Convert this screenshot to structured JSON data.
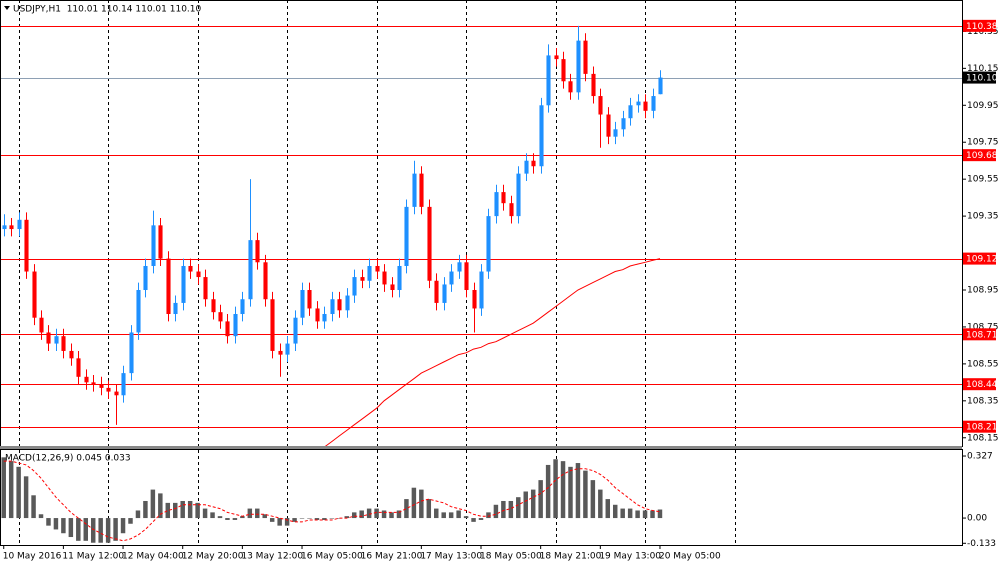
{
  "chart_data": {
    "type": "candlestick",
    "title": "USDJPY,H1  110.01 110.14 110.01 110.10",
    "bull_color": "#1e90ff",
    "bear_color": "#ff0000",
    "open": [
      109.28,
      109.3,
      109.28,
      109.33,
      109.05,
      108.8,
      108.72,
      108.66,
      108.7,
      108.62,
      108.58,
      108.48,
      108.45,
      108.44,
      108.42,
      108.4,
      108.38,
      108.5,
      108.72,
      108.95,
      109.08,
      109.3,
      109.12,
      108.82,
      108.88,
      109.08,
      109.05,
      109.02,
      108.9,
      108.83,
      108.78,
      108.7,
      108.82,
      108.9,
      109.22,
      109.1,
      108.9,
      108.62,
      108.6,
      108.66,
      108.8,
      108.95,
      108.85,
      108.78,
      108.82,
      108.9,
      108.84,
      108.92,
      109.02,
      109.0,
      109.08,
      109.05,
      108.98,
      108.95,
      109.08,
      109.4,
      109.58,
      109.4,
      109.0,
      108.88,
      108.98,
      109.05,
      109.1,
      108.95,
      108.85,
      109.05,
      109.35,
      109.48,
      109.42,
      109.35,
      109.58,
      109.65,
      109.62,
      109.95,
      110.22,
      110.2,
      110.08,
      110.02,
      110.3,
      110.12,
      110.0,
      109.9,
      109.78,
      109.82,
      109.88,
      109.95,
      109.97,
      109.92,
      110.01
    ],
    "high": [
      109.36,
      109.34,
      109.37,
      109.37,
      109.09,
      108.84,
      108.76,
      108.74,
      108.74,
      108.66,
      108.62,
      108.52,
      108.49,
      108.48,
      108.46,
      108.44,
      108.54,
      108.76,
      108.99,
      109.12,
      109.38,
      109.34,
      109.16,
      108.92,
      109.12,
      109.12,
      109.09,
      109.06,
      108.94,
      108.87,
      108.82,
      108.86,
      108.94,
      109.55,
      109.26,
      109.14,
      108.94,
      108.66,
      108.7,
      108.84,
      108.99,
      108.99,
      108.89,
      108.86,
      108.94,
      108.94,
      108.96,
      109.06,
      109.06,
      109.12,
      109.12,
      109.09,
      109.02,
      109.12,
      109.44,
      109.65,
      109.62,
      109.44,
      109.04,
      109.02,
      109.09,
      109.14,
      109.14,
      108.99,
      109.09,
      109.39,
      109.52,
      109.52,
      109.46,
      109.62,
      109.69,
      109.69,
      109.99,
      110.28,
      110.26,
      110.24,
      110.12,
      110.38,
      110.34,
      110.16,
      110.04,
      109.94,
      109.86,
      109.92,
      109.99,
      110.01,
      110.01,
      110.04,
      110.14
    ],
    "low": [
      109.24,
      109.24,
      109.24,
      109.01,
      108.76,
      108.68,
      108.62,
      108.62,
      108.58,
      108.54,
      108.44,
      108.41,
      108.4,
      108.38,
      108.36,
      108.22,
      108.34,
      108.46,
      108.68,
      108.91,
      109.04,
      109.08,
      108.78,
      108.78,
      108.84,
      109.01,
      108.98,
      108.86,
      108.79,
      108.74,
      108.66,
      108.66,
      108.78,
      108.86,
      109.06,
      108.86,
      108.58,
      108.48,
      108.56,
      108.62,
      108.76,
      108.81,
      108.74,
      108.74,
      108.78,
      108.8,
      108.8,
      108.88,
      108.96,
      108.96,
      109.01,
      108.94,
      108.91,
      108.91,
      109.04,
      109.36,
      109.36,
      108.96,
      108.84,
      108.84,
      108.94,
      109.01,
      108.91,
      108.72,
      108.81,
      109.01,
      109.31,
      109.38,
      109.31,
      109.31,
      109.54,
      109.58,
      109.58,
      109.91,
      110.16,
      110.04,
      109.98,
      109.98,
      110.08,
      109.96,
      109.72,
      109.74,
      109.74,
      109.78,
      109.84,
      109.91,
      109.88,
      109.88,
      110.01
    ],
    "close": [
      109.3,
      109.28,
      109.33,
      109.05,
      108.8,
      108.72,
      108.66,
      108.7,
      108.62,
      108.58,
      108.48,
      108.45,
      108.44,
      108.42,
      108.4,
      108.38,
      108.5,
      108.72,
      108.95,
      109.08,
      109.3,
      109.12,
      108.82,
      108.88,
      109.08,
      109.05,
      109.02,
      108.9,
      108.83,
      108.78,
      108.7,
      108.82,
      108.9,
      109.22,
      109.1,
      108.9,
      108.62,
      108.6,
      108.66,
      108.8,
      108.95,
      108.85,
      108.78,
      108.82,
      108.9,
      108.84,
      108.92,
      109.02,
      109.0,
      109.08,
      109.05,
      108.98,
      108.95,
      109.08,
      109.4,
      109.58,
      109.4,
      109.0,
      108.88,
      108.98,
      109.05,
      109.1,
      108.95,
      108.85,
      109.05,
      109.35,
      109.48,
      109.42,
      109.35,
      109.58,
      109.65,
      109.62,
      109.95,
      110.22,
      110.2,
      110.08,
      110.02,
      110.3,
      110.12,
      110.0,
      109.9,
      109.78,
      109.82,
      109.88,
      109.95,
      109.97,
      109.92,
      110.0,
      110.1
    ],
    "ma": {
      "color": "#ff0000",
      "values": [
        null,
        null,
        null,
        null,
        null,
        null,
        null,
        null,
        null,
        null,
        null,
        null,
        null,
        null,
        null,
        null,
        null,
        null,
        null,
        null,
        null,
        null,
        null,
        null,
        null,
        null,
        null,
        null,
        null,
        null,
        null,
        null,
        null,
        null,
        null,
        null,
        null,
        null,
        null,
        null,
        null,
        null,
        null,
        108.1,
        108.13,
        108.16,
        108.19,
        108.22,
        108.25,
        108.28,
        108.31,
        108.35,
        108.38,
        108.41,
        108.44,
        108.47,
        108.5,
        108.52,
        108.54,
        108.56,
        108.58,
        108.6,
        108.61,
        108.63,
        108.64,
        108.66,
        108.67,
        108.69,
        108.71,
        108.73,
        108.75,
        108.77,
        108.8,
        108.83,
        108.86,
        108.89,
        108.92,
        108.95,
        108.97,
        108.99,
        109.01,
        109.03,
        109.05,
        109.06,
        109.08,
        109.09,
        109.1,
        109.11,
        109.12
      ]
    },
    "levels": {
      "color": "#ff0000",
      "values": [
        110.38,
        109.68,
        109.12,
        108.71,
        108.44,
        108.21
      ]
    },
    "price_line": {
      "color": "#8ea0b4",
      "value": {
        "value": 110.1,
        "label": "110.10"
      }
    },
    "ylim": [
      108.1,
      110.52
    ],
    "yticks": [
      110.35,
      110.15,
      109.95,
      109.75,
      109.55,
      109.35,
      108.95,
      108.75,
      108.55,
      108.35,
      108.15
    ],
    "xlim": [
      -0.5,
      128.5
    ],
    "xticks": [
      {
        "value": 0,
        "label": "10 May 2016"
      },
      {
        "value": 8,
        "label": "11 May 12:00"
      },
      {
        "value": 16,
        "label": "12 May 04:00"
      },
      {
        "value": 24,
        "label": "12 May 20:00"
      },
      {
        "value": 32,
        "label": "13 May 12:00"
      },
      {
        "value": 40,
        "label": "16 May 05:00"
      },
      {
        "value": 48,
        "label": "16 May 21:00"
      },
      {
        "value": 56,
        "label": "17 May 13:00"
      },
      {
        "value": 64,
        "label": "18 May 05:00"
      },
      {
        "value": 72,
        "label": "18 May 21:00"
      },
      {
        "value": 80,
        "label": "19 May 13:00"
      },
      {
        "value": 88,
        "label": "20 May 05:00"
      }
    ],
    "xgrid": [
      2,
      14,
      26,
      38,
      50,
      62,
      74,
      86,
      98
    ],
    "macd": {
      "type": "bar",
      "title": "MACD(12,26,9) 0.045 0.033",
      "histogram": {
        "color": "#595959",
        "values": [
          0.32,
          0.3,
          0.27,
          0.22,
          0.12,
          0.02,
          -0.04,
          -0.06,
          -0.08,
          -0.1,
          -0.12,
          -0.12,
          -0.13,
          -0.13,
          -0.13,
          -0.12,
          -0.08,
          -0.03,
          0.04,
          0.09,
          0.15,
          0.13,
          0.08,
          0.08,
          0.09,
          0.09,
          0.08,
          0.05,
          0.03,
          0.01,
          -0.01,
          -0.01,
          0.01,
          0.05,
          0.05,
          0.02,
          -0.02,
          -0.04,
          -0.04,
          -0.02,
          0.0,
          0.0,
          -0.01,
          -0.01,
          0.0,
          0.0,
          0.01,
          0.03,
          0.04,
          0.05,
          0.05,
          0.04,
          0.03,
          0.04,
          0.1,
          0.16,
          0.15,
          0.1,
          0.05,
          0.03,
          0.03,
          0.04,
          0.01,
          -0.02,
          -0.01,
          0.03,
          0.07,
          0.09,
          0.09,
          0.11,
          0.14,
          0.15,
          0.2,
          0.28,
          0.31,
          0.3,
          0.27,
          0.29,
          0.25,
          0.2,
          0.15,
          0.1,
          0.07,
          0.05,
          0.05,
          0.04,
          0.04,
          0.04,
          0.045
        ]
      },
      "signal": {
        "color": "#ff0000",
        "values": [
          0.3,
          0.3,
          0.29,
          0.28,
          0.25,
          0.21,
          0.16,
          0.11,
          0.07,
          0.03,
          0.0,
          -0.03,
          -0.06,
          -0.08,
          -0.1,
          -0.11,
          -0.12,
          -0.11,
          -0.09,
          -0.06,
          -0.02,
          0.02,
          0.04,
          0.05,
          0.07,
          0.07,
          0.07,
          0.07,
          0.06,
          0.05,
          0.03,
          0.02,
          0.01,
          0.02,
          0.02,
          0.02,
          0.01,
          0.0,
          -0.01,
          -0.02,
          -0.02,
          -0.01,
          -0.01,
          -0.01,
          -0.01,
          0.0,
          0.0,
          0.01,
          0.01,
          0.02,
          0.03,
          0.03,
          0.03,
          0.03,
          0.05,
          0.07,
          0.09,
          0.1,
          0.09,
          0.08,
          0.06,
          0.05,
          0.04,
          0.02,
          0.01,
          0.01,
          0.02,
          0.04,
          0.05,
          0.07,
          0.09,
          0.11,
          0.13,
          0.16,
          0.2,
          0.23,
          0.25,
          0.26,
          0.26,
          0.25,
          0.23,
          0.2,
          0.16,
          0.13,
          0.1,
          0.07,
          0.05,
          0.04,
          0.033
        ]
      },
      "ylim": [
        -0.142,
        0.364
      ],
      "yticks": [
        0.327,
        {
          "value": 0,
          "label": "0.00"
        },
        -0.133
      ]
    }
  }
}
